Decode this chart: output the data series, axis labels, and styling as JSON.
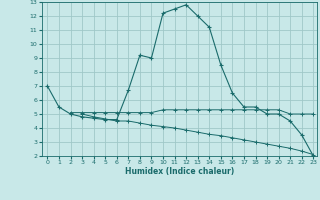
{
  "xlabel": "Humidex (Indice chaleur)",
  "ylabel": "",
  "bg_color": "#c8e8e8",
  "grid_color": "#a0c8c8",
  "line_color": "#1a6b6b",
  "xlim": [
    -0.5,
    23.3
  ],
  "ylim": [
    2,
    13
  ],
  "xticks": [
    0,
    1,
    2,
    3,
    4,
    5,
    6,
    7,
    8,
    9,
    10,
    11,
    12,
    13,
    14,
    15,
    16,
    17,
    18,
    19,
    20,
    21,
    22,
    23
  ],
  "yticks": [
    2,
    3,
    4,
    5,
    6,
    7,
    8,
    9,
    10,
    11,
    12,
    13
  ],
  "curve1_x": [
    0,
    1,
    2,
    3,
    4,
    5,
    6,
    7,
    8,
    9,
    10,
    11,
    12,
    13,
    14,
    15,
    16,
    17,
    18,
    19,
    20,
    21,
    22,
    23
  ],
  "curve1_y": [
    7.0,
    5.5,
    5.0,
    4.8,
    4.7,
    4.6,
    4.6,
    6.7,
    9.2,
    9.0,
    12.2,
    12.5,
    12.8,
    12.0,
    11.2,
    8.5,
    6.5,
    5.5,
    5.5,
    5.0,
    5.0,
    4.5,
    3.5,
    2.0
  ],
  "curve2_x": [
    2,
    3,
    4,
    5,
    6,
    7,
    8,
    9,
    10,
    11,
    12,
    13,
    14,
    15,
    16,
    17,
    18,
    19,
    20,
    21,
    22,
    23
  ],
  "curve2_y": [
    5.1,
    5.1,
    5.1,
    5.1,
    5.1,
    5.1,
    5.1,
    5.1,
    5.3,
    5.3,
    5.3,
    5.3,
    5.3,
    5.3,
    5.3,
    5.3,
    5.3,
    5.3,
    5.3,
    5.0,
    5.0,
    5.0
  ],
  "curve3_x": [
    3,
    4,
    5,
    6,
    7,
    8,
    9,
    10,
    11,
    12,
    13,
    14,
    15,
    16,
    17,
    18,
    19,
    20,
    21,
    22,
    23
  ],
  "curve3_y": [
    5.0,
    4.8,
    4.65,
    4.5,
    4.5,
    4.35,
    4.2,
    4.1,
    4.0,
    3.85,
    3.7,
    3.55,
    3.45,
    3.3,
    3.15,
    3.0,
    2.85,
    2.7,
    2.55,
    2.35,
    2.1
  ]
}
